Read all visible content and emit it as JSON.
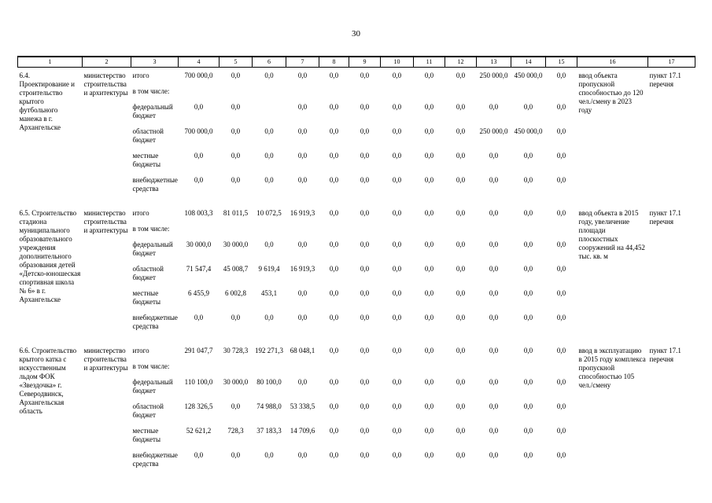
{
  "page": {
    "number": "30"
  },
  "table": {
    "column_numbers": [
      "1",
      "2",
      "3",
      "4",
      "5",
      "6",
      "7",
      "8",
      "9",
      "10",
      "11",
      "12",
      "13",
      "14",
      "15",
      "16",
      "17"
    ],
    "projects": [
      {
        "name": "6.4. Проектирование и строительство крытого футбольного манежа в г. Архангельске",
        "agency": "министерство строительства и архитектуры",
        "result": "ввод объекта пропускной способностью до 120 чел./смену в 2023 году",
        "reference": "пункт 17.1 перечня",
        "funding_rows": [
          {
            "label": "итого",
            "values": [
              "700 000,0",
              "0,0",
              "0,0",
              "0,0",
              "0,0",
              "0,0",
              "0,0",
              "0,0",
              "0,0",
              "250 000,0",
              "450 000,0",
              "0,0"
            ]
          },
          {
            "label": "в том числе:",
            "values": [
              "",
              "",
              "",
              "",
              "",
              "",
              "",
              "",
              "",
              "",
              "",
              ""
            ]
          },
          {
            "label": "федеральный бюджет",
            "values": [
              "0,0",
              "0,0",
              "",
              "0,0",
              "0,0",
              "0,0",
              "0,0",
              "0,0",
              "0,0",
              "0,0",
              "0,0",
              "0,0"
            ]
          },
          {
            "label": "областной бюджет",
            "values": [
              "700 000,0",
              "0,0",
              "0,0",
              "0,0",
              "0,0",
              "0,0",
              "0,0",
              "0,0",
              "0,0",
              "250 000,0",
              "450 000,0",
              "0,0"
            ]
          },
          {
            "label": "местные бюджеты",
            "values": [
              "0,0",
              "0,0",
              "0,0",
              "0,0",
              "0,0",
              "0,0",
              "0,0",
              "0,0",
              "0,0",
              "0,0",
              "0,0",
              "0,0"
            ]
          },
          {
            "label": "внебюджетные средства",
            "values": [
              "0,0",
              "0,0",
              "0,0",
              "0,0",
              "0,0",
              "0,0",
              "0,0",
              "0,0",
              "0,0",
              "0,0",
              "0,0",
              "0,0"
            ]
          }
        ]
      },
      {
        "name": "6.5. Строительство стадиона муниципального образовательного учреждения дополнительного образования детей «Детско-юношеская спортивная школа № 6» в г. Архангельске",
        "agency": "министерство строительства и архитектуры",
        "result": "ввод объекта в 2015 году, увеличение площади плоскостных сооружений на 44,452 тыс. кв. м",
        "reference": "пункт 17.1 перечня",
        "funding_rows": [
          {
            "label": "итого",
            "values": [
              "108 003,3",
              "81 011,5",
              "10 072,5",
              "16 919,3",
              "0,0",
              "0,0",
              "0,0",
              "0,0",
              "0,0",
              "0,0",
              "0,0",
              "0,0"
            ]
          },
          {
            "label": "в том числе:",
            "values": [
              "",
              "",
              "",
              "",
              "",
              "",
              "",
              "",
              "",
              "",
              "",
              ""
            ]
          },
          {
            "label": "федеральный бюджет",
            "values": [
              "30 000,0",
              "30 000,0",
              "0,0",
              "0,0",
              "0,0",
              "0,0",
              "0,0",
              "0,0",
              "0,0",
              "0,0",
              "0,0",
              "0,0"
            ]
          },
          {
            "label": "областной бюджет",
            "values": [
              "71 547,4",
              "45 008,7",
              "9 619,4",
              "16 919,3",
              "0,0",
              "0,0",
              "0,0",
              "0,0",
              "0,0",
              "0,0",
              "0,0",
              "0,0"
            ]
          },
          {
            "label": "местные бюджеты",
            "values": [
              "6 455,9",
              "6 002,8",
              "453,1",
              "0,0",
              "0,0",
              "0,0",
              "0,0",
              "0,0",
              "0,0",
              "0,0",
              "0,0",
              "0,0"
            ]
          },
          {
            "label": "внебюджетные средства",
            "values": [
              "0,0",
              "0,0",
              "0,0",
              "0,0",
              "0,0",
              "0,0",
              "0,0",
              "0,0",
              "0,0",
              "0,0",
              "0,0",
              "0,0"
            ]
          }
        ]
      },
      {
        "name": "6.6. Строительство крытого катка с искусственным льдом ФОК «Звездочка» г. Северодвинск, Архангельская область",
        "agency": "министерство строительства и архитектуры",
        "result": "ввод в эксплуатацию в 2015 году комплекса пропускной способностью 105 чел./смену",
        "reference": "пункт 17.1 перечня",
        "funding_rows": [
          {
            "label": "итого",
            "values": [
              "291 047,7",
              "30 728,3",
              "192 271,3",
              "68 048,1",
              "0,0",
              "0,0",
              "0,0",
              "0,0",
              "0,0",
              "0,0",
              "0,0",
              "0,0"
            ]
          },
          {
            "label": "в том числе:",
            "values": [
              "",
              "",
              "",
              "",
              "",
              "",
              "",
              "",
              "",
              "",
              "",
              ""
            ]
          },
          {
            "label": "федеральный бюджет",
            "values": [
              "110 100,0",
              "30 000,0",
              "80 100,0",
              "0,0",
              "0,0",
              "0,0",
              "0,0",
              "0,0",
              "0,0",
              "0,0",
              "0,0",
              "0,0"
            ]
          },
          {
            "label": "областной бюджет",
            "values": [
              "128 326,5",
              "0,0",
              "74 988,0",
              "53 338,5",
              "0,0",
              "0,0",
              "0,0",
              "0,0",
              "0,0",
              "0,0",
              "0,0",
              "0,0"
            ]
          },
          {
            "label": "местные бюджеты",
            "values": [
              "52 621,2",
              "728,3",
              "37 183,3",
              "14 709,6",
              "0,0",
              "0,0",
              "0,0",
              "0,0",
              "0,0",
              "0,0",
              "0,0",
              "0,0"
            ]
          },
          {
            "label": "внебюджетные средства",
            "values": [
              "0,0",
              "0,0",
              "0,0",
              "0,0",
              "0,0",
              "0,0",
              "0,0",
              "0,0",
              "0,0",
              "0,0",
              "0,0",
              "0,0"
            ]
          }
        ]
      }
    ]
  }
}
